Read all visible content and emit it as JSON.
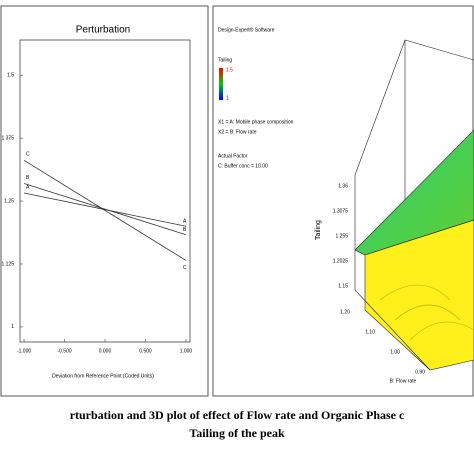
{
  "chart_data": {
    "type": "line",
    "title": "Perturbation",
    "xlabel": "Deviation from Reference Point (Coded Units)",
    "x": [
      -1,
      1
    ],
    "series": [
      {
        "name": "A",
        "color": "#333333",
        "values": [
          1.266,
          1.2
        ]
      },
      {
        "name": "B",
        "color": "#333333",
        "values": [
          1.285,
          1.183
        ]
      },
      {
        "name": "C",
        "color": "#333333",
        "values": [
          1.331,
          1.132
        ]
      }
    ],
    "xlim": [
      -1.05,
      1.05
    ],
    "xticks": [
      {
        "value": -1,
        "label": "-1.000"
      },
      {
        "value": -0.5,
        "label": "-0.500"
      },
      {
        "value": 0,
        "label": "0.000"
      },
      {
        "value": 0.5,
        "label": "0.500"
      },
      {
        "value": 1,
        "label": "1.000"
      }
    ],
    "ylim": [
      0.97,
      1.57
    ],
    "yticks": [
      {
        "value": 1.5,
        "label": "1.5"
      },
      {
        "value": 1.375,
        "label": "1.375"
      },
      {
        "value": 1.25,
        "label": "1.25"
      },
      {
        "value": 1.125,
        "label": "1.125"
      },
      1
    ]
  },
  "surface_panel": {
    "software": "Design-Expert® Software",
    "response": "Tailing",
    "legend_high": "1.5",
    "legend_low": "1",
    "x1": "X1 = A: Mobile phase composition",
    "x2": "X2 = B: Flow rate",
    "actual_factor": "Actual Factor",
    "factor_c": "C: Buffer conc  = 10.00",
    "z_label": "Tailing",
    "z_ticks": [
      "1.36",
      "1.3075",
      "1.255",
      "1.2025",
      "1.15"
    ],
    "b_label": "B: Flow rate",
    "b_ticks": [
      "1.20",
      "1.10",
      "1.00",
      "0.90"
    ]
  },
  "caption": [
    "rturbation and 3D plot of effect of  Flow rate and Organic Phase c",
    "Tailing of the peak"
  ]
}
